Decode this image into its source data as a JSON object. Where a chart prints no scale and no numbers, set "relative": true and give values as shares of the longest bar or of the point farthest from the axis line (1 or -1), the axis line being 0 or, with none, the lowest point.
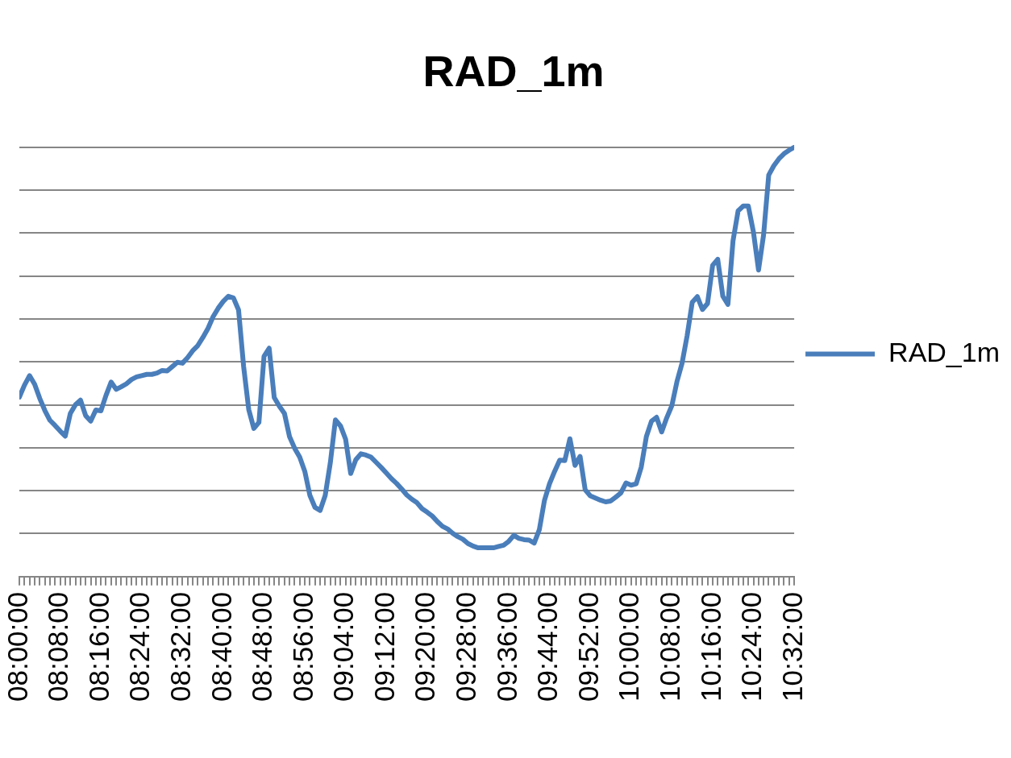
{
  "chart_data": {
    "type": "line",
    "title": "RAD_1m",
    "x": [
      8,
      8.0167,
      8.0333,
      8.05,
      8.0667,
      8.0833,
      8.1,
      8.1167,
      8.1333,
      8.15,
      8.1667,
      8.1833,
      8.2,
      8.2167,
      8.2333,
      8.25,
      8.2667,
      8.2833,
      8.3,
      8.3167,
      8.3333,
      8.35,
      8.3667,
      8.3833,
      8.4,
      8.4167,
      8.4333,
      8.45,
      8.4667,
      8.4833,
      8.5,
      8.5167,
      8.5333,
      8.55,
      8.5667,
      8.5833,
      8.6,
      8.6167,
      8.6333,
      8.65,
      8.6667,
      8.6833,
      8.7,
      8.7167,
      8.7333,
      8.75,
      8.7667,
      8.7833,
      8.8,
      8.8167,
      8.8333,
      8.85,
      8.8667,
      8.8833,
      8.9,
      8.9167,
      8.9333,
      8.95,
      8.9667,
      8.9833,
      9,
      9.0167,
      9.0333,
      9.05,
      9.0667,
      9.0833,
      9.1,
      9.1167,
      9.1333,
      9.15,
      9.1667,
      9.1833,
      9.2,
      9.2167,
      9.2333,
      9.25,
      9.2667,
      9.2833,
      9.3,
      9.3167,
      9.3333,
      9.35,
      9.3667,
      9.3833,
      9.4,
      9.4167,
      9.4333,
      9.45,
      9.4667,
      9.4833,
      9.5,
      9.5167,
      9.5333,
      9.55,
      9.5667,
      9.5833,
      9.6,
      9.6167,
      9.6333,
      9.65,
      9.6667,
      9.6833,
      9.7,
      9.7167,
      9.7333,
      9.75,
      9.7667,
      9.7833,
      9.8,
      9.8167,
      9.8333,
      9.85,
      9.8667,
      9.8833,
      9.9,
      9.9167,
      9.9333,
      9.95,
      9.9667,
      9.9833,
      10,
      10.0167,
      10.0333,
      10.05,
      10.0667,
      10.0833,
      10.1,
      10.1167,
      10.1333,
      10.15,
      10.1667,
      10.1833,
      10.2,
      10.2167,
      10.2333,
      10.25,
      10.2667,
      10.2833,
      10.3,
      10.3167,
      10.3333,
      10.35,
      10.3667,
      10.3833,
      10.4,
      10.4167,
      10.4333,
      10.45,
      10.4667,
      10.4833,
      10.5,
      10.5167,
      10.5333
    ],
    "series": [
      {
        "name": "RAD_1m",
        "color": "#4a7ebb",
        "values": [
          0.418,
          0.446,
          0.468,
          0.448,
          0.415,
          0.387,
          0.364,
          0.352,
          0.339,
          0.327,
          0.38,
          0.4,
          0.411,
          0.375,
          0.362,
          0.388,
          0.386,
          0.422,
          0.453,
          0.436,
          0.442,
          0.449,
          0.459,
          0.465,
          0.468,
          0.471,
          0.471,
          0.474,
          0.48,
          0.479,
          0.489,
          0.499,
          0.497,
          0.51,
          0.526,
          0.538,
          0.557,
          0.578,
          0.605,
          0.625,
          0.641,
          0.653,
          0.649,
          0.621,
          0.489,
          0.389,
          0.345,
          0.359,
          0.513,
          0.532,
          0.417,
          0.397,
          0.38,
          0.326,
          0.299,
          0.278,
          0.245,
          0.189,
          0.161,
          0.154,
          0.189,
          0.265,
          0.365,
          0.351,
          0.32,
          0.24,
          0.272,
          0.286,
          0.283,
          0.278,
          0.266,
          0.254,
          0.241,
          0.228,
          0.217,
          0.204,
          0.19,
          0.18,
          0.172,
          0.158,
          0.15,
          0.141,
          0.128,
          0.117,
          0.111,
          0.101,
          0.093,
          0.087,
          0.077,
          0.071,
          0.067,
          0.067,
          0.067,
          0.067,
          0.07,
          0.073,
          0.082,
          0.096,
          0.089,
          0.086,
          0.085,
          0.078,
          0.109,
          0.177,
          0.216,
          0.245,
          0.271,
          0.27,
          0.321,
          0.259,
          0.28,
          0.202,
          0.188,
          0.183,
          0.178,
          0.174,
          0.176,
          0.185,
          0.195,
          0.218,
          0.213,
          0.216,
          0.255,
          0.326,
          0.362,
          0.371,
          0.337,
          0.37,
          0.398,
          0.454,
          0.497,
          0.561,
          0.639,
          0.652,
          0.622,
          0.636,
          0.725,
          0.739,
          0.653,
          0.634,
          0.782,
          0.852,
          0.863,
          0.863,
          0.803,
          0.714,
          0.796,
          0.935,
          0.957,
          0.973,
          0.985,
          0.993,
          1
        ]
      }
    ],
    "xlim": [
      8,
      10.5333
    ],
    "xticks": [
      {
        "value": 8,
        "label": "08:00:00"
      },
      {
        "value": 8.0167,
        "label": null
      },
      {
        "value": 8.0333,
        "label": null
      },
      {
        "value": 8.05,
        "label": null
      },
      {
        "value": 8.0667,
        "label": null
      },
      {
        "value": 8.0833,
        "label": null
      },
      {
        "value": 8.1,
        "label": null
      },
      {
        "value": 8.1167,
        "label": null
      },
      {
        "value": 8.1333,
        "label": "08:08:00"
      },
      {
        "value": 8.15,
        "label": null
      },
      {
        "value": 8.1667,
        "label": null
      },
      {
        "value": 8.1833,
        "label": null
      },
      {
        "value": 8.2,
        "label": null
      },
      {
        "value": 8.2167,
        "label": null
      },
      {
        "value": 8.2333,
        "label": null
      },
      {
        "value": 8.25,
        "label": null
      },
      {
        "value": 8.2667,
        "label": "08:16:00"
      },
      {
        "value": 8.2833,
        "label": null
      },
      {
        "value": 8.3,
        "label": null
      },
      {
        "value": 8.3167,
        "label": null
      },
      {
        "value": 8.3333,
        "label": null
      },
      {
        "value": 8.35,
        "label": null
      },
      {
        "value": 8.3667,
        "label": null
      },
      {
        "value": 8.3833,
        "label": null
      },
      {
        "value": 8.4,
        "label": "08:24:00"
      },
      {
        "value": 8.4167,
        "label": null
      },
      {
        "value": 8.4333,
        "label": null
      },
      {
        "value": 8.45,
        "label": null
      },
      {
        "value": 8.4667,
        "label": null
      },
      {
        "value": 8.4833,
        "label": null
      },
      {
        "value": 8.5,
        "label": null
      },
      {
        "value": 8.5167,
        "label": null
      },
      {
        "value": 8.5333,
        "label": "08:32:00"
      },
      {
        "value": 8.55,
        "label": null
      },
      {
        "value": 8.5667,
        "label": null
      },
      {
        "value": 8.5833,
        "label": null
      },
      {
        "value": 8.6,
        "label": null
      },
      {
        "value": 8.6167,
        "label": null
      },
      {
        "value": 8.6333,
        "label": null
      },
      {
        "value": 8.65,
        "label": null
      },
      {
        "value": 8.6667,
        "label": "08:40:00"
      },
      {
        "value": 8.6833,
        "label": null
      },
      {
        "value": 8.7,
        "label": null
      },
      {
        "value": 8.7167,
        "label": null
      },
      {
        "value": 8.7333,
        "label": null
      },
      {
        "value": 8.75,
        "label": null
      },
      {
        "value": 8.7667,
        "label": null
      },
      {
        "value": 8.7833,
        "label": null
      },
      {
        "value": 8.8,
        "label": "08:48:00"
      },
      {
        "value": 8.8167,
        "label": null
      },
      {
        "value": 8.8333,
        "label": null
      },
      {
        "value": 8.85,
        "label": null
      },
      {
        "value": 8.8667,
        "label": null
      },
      {
        "value": 8.8833,
        "label": null
      },
      {
        "value": 8.9,
        "label": null
      },
      {
        "value": 8.9167,
        "label": null
      },
      {
        "value": 8.9333,
        "label": "08:56:00"
      },
      {
        "value": 8.95,
        "label": null
      },
      {
        "value": 8.9667,
        "label": null
      },
      {
        "value": 8.9833,
        "label": null
      },
      {
        "value": 9,
        "label": null
      },
      {
        "value": 9.0167,
        "label": null
      },
      {
        "value": 9.0333,
        "label": null
      },
      {
        "value": 9.05,
        "label": null
      },
      {
        "value": 9.0667,
        "label": "09:04:00"
      },
      {
        "value": 9.0833,
        "label": null
      },
      {
        "value": 9.1,
        "label": null
      },
      {
        "value": 9.1167,
        "label": null
      },
      {
        "value": 9.1333,
        "label": null
      },
      {
        "value": 9.15,
        "label": null
      },
      {
        "value": 9.1667,
        "label": null
      },
      {
        "value": 9.1833,
        "label": null
      },
      {
        "value": 9.2,
        "label": "09:12:00"
      },
      {
        "value": 9.2167,
        "label": null
      },
      {
        "value": 9.2333,
        "label": null
      },
      {
        "value": 9.25,
        "label": null
      },
      {
        "value": 9.2667,
        "label": null
      },
      {
        "value": 9.2833,
        "label": null
      },
      {
        "value": 9.3,
        "label": null
      },
      {
        "value": 9.3167,
        "label": null
      },
      {
        "value": 9.3333,
        "label": "09:20:00"
      },
      {
        "value": 9.35,
        "label": null
      },
      {
        "value": 9.3667,
        "label": null
      },
      {
        "value": 9.3833,
        "label": null
      },
      {
        "value": 9.4,
        "label": null
      },
      {
        "value": 9.4167,
        "label": null
      },
      {
        "value": 9.4333,
        "label": null
      },
      {
        "value": 9.45,
        "label": null
      },
      {
        "value": 9.4667,
        "label": "09:28:00"
      },
      {
        "value": 9.4833,
        "label": null
      },
      {
        "value": 9.5,
        "label": null
      },
      {
        "value": 9.5167,
        "label": null
      },
      {
        "value": 9.5333,
        "label": null
      },
      {
        "value": 9.55,
        "label": null
      },
      {
        "value": 9.5667,
        "label": null
      },
      {
        "value": 9.5833,
        "label": null
      },
      {
        "value": 9.6,
        "label": "09:36:00"
      },
      {
        "value": 9.6167,
        "label": null
      },
      {
        "value": 9.6333,
        "label": null
      },
      {
        "value": 9.65,
        "label": null
      },
      {
        "value": 9.6667,
        "label": null
      },
      {
        "value": 9.6833,
        "label": null
      },
      {
        "value": 9.7,
        "label": null
      },
      {
        "value": 9.7167,
        "label": null
      },
      {
        "value": 9.7333,
        "label": "09:44:00"
      },
      {
        "value": 9.75,
        "label": null
      },
      {
        "value": 9.7667,
        "label": null
      },
      {
        "value": 9.7833,
        "label": null
      },
      {
        "value": 9.8,
        "label": null
      },
      {
        "value": 9.8167,
        "label": null
      },
      {
        "value": 9.8333,
        "label": null
      },
      {
        "value": 9.85,
        "label": null
      },
      {
        "value": 9.8667,
        "label": "09:52:00"
      },
      {
        "value": 9.8833,
        "label": null
      },
      {
        "value": 9.9,
        "label": null
      },
      {
        "value": 9.9167,
        "label": null
      },
      {
        "value": 9.9333,
        "label": null
      },
      {
        "value": 9.95,
        "label": null
      },
      {
        "value": 9.9667,
        "label": null
      },
      {
        "value": 9.9833,
        "label": null
      },
      {
        "value": 10,
        "label": "10:00:00"
      },
      {
        "value": 10.0167,
        "label": null
      },
      {
        "value": 10.0333,
        "label": null
      },
      {
        "value": 10.05,
        "label": null
      },
      {
        "value": 10.0667,
        "label": null
      },
      {
        "value": 10.0833,
        "label": null
      },
      {
        "value": 10.1,
        "label": null
      },
      {
        "value": 10.1167,
        "label": null
      },
      {
        "value": 10.1333,
        "label": "10:08:00"
      },
      {
        "value": 10.15,
        "label": null
      },
      {
        "value": 10.1667,
        "label": null
      },
      {
        "value": 10.1833,
        "label": null
      },
      {
        "value": 10.2,
        "label": null
      },
      {
        "value": 10.2167,
        "label": null
      },
      {
        "value": 10.2333,
        "label": null
      },
      {
        "value": 10.25,
        "label": null
      },
      {
        "value": 10.2667,
        "label": "10:16:00"
      },
      {
        "value": 10.2833,
        "label": null
      },
      {
        "value": 10.3,
        "label": null
      },
      {
        "value": 10.3167,
        "label": null
      },
      {
        "value": 10.3333,
        "label": null
      },
      {
        "value": 10.35,
        "label": null
      },
      {
        "value": 10.3667,
        "label": null
      },
      {
        "value": 10.3833,
        "label": null
      },
      {
        "value": 10.4,
        "label": "10:24:00"
      },
      {
        "value": 10.4167,
        "label": null
      },
      {
        "value": 10.4333,
        "label": null
      },
      {
        "value": 10.45,
        "label": null
      },
      {
        "value": 10.4667,
        "label": null
      },
      {
        "value": 10.4833,
        "label": null
      },
      {
        "value": 10.5,
        "label": null
      },
      {
        "value": 10.5167,
        "label": null
      },
      {
        "value": 10.5333,
        "label": "10:32:00"
      }
    ],
    "relative": true,
    "grid": "y",
    "legend": "right"
  }
}
